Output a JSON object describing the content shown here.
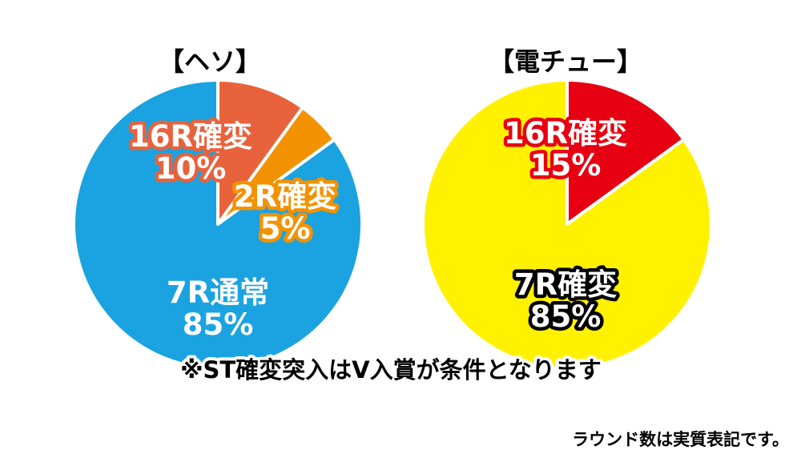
{
  "chart_data": [
    {
      "type": "pie",
      "title": "【ヘソ】",
      "slices": [
        {
          "label": "16R確変",
          "value": 10,
          "value_text": "10%",
          "color": "#e8623c",
          "text_color": "#ffffff",
          "outline_color": "#e8623c"
        },
        {
          "label": "2R確変",
          "value": 5,
          "value_text": "5%",
          "color": "#f39200",
          "text_color": "#ffffff",
          "outline_color": "#f39200"
        },
        {
          "label": "7R通常",
          "value": 85,
          "value_text": "85%",
          "color": "#1aa3e0",
          "text_color": "#ffffff",
          "outline_color": "#1aa3e0"
        }
      ]
    },
    {
      "type": "pie",
      "title": "【電チュー】",
      "slices": [
        {
          "label": "16R確変",
          "value": 15,
          "value_text": "15%",
          "color": "#e60012",
          "text_color": "#ffffff",
          "outline_color": "#e60012"
        },
        {
          "label": "7R確変",
          "value": 85,
          "value_text": "85%",
          "color": "#fff100",
          "text_color": "#ffffff",
          "outline_color": "#000000"
        }
      ]
    }
  ],
  "footnote": "※ST確変突入はV入賞が条件となります",
  "source_note": "ラウンド数は実質表記です。"
}
